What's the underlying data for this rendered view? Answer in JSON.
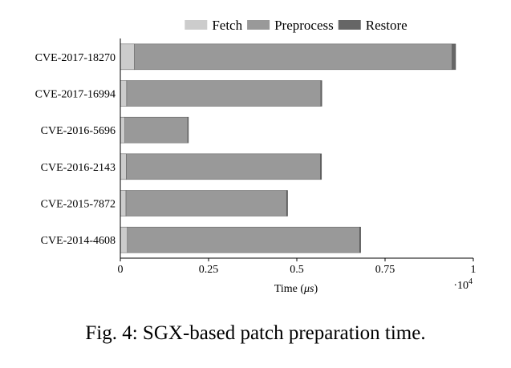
{
  "caption": "Fig. 4: SGX-based patch preparation time.",
  "chart_data": {
    "type": "bar",
    "orientation": "horizontal",
    "stacked": true,
    "categories": [
      "CVE-2017-18270",
      "CVE-2017-16994",
      "CVE-2016-5696",
      "CVE-2016-2143",
      "CVE-2015-7872",
      "CVE-2014-4608"
    ],
    "series": [
      {
        "name": "Fetch",
        "color": "#cccccc",
        "values": [
          400,
          180,
          130,
          170,
          160,
          200
        ]
      },
      {
        "name": "Preprocess",
        "color": "#999999",
        "values": [
          9000,
          5500,
          1780,
          5500,
          4550,
          6580
        ]
      },
      {
        "name": "Restore",
        "color": "#666666",
        "values": [
          100,
          30,
          20,
          30,
          30,
          30
        ]
      }
    ],
    "xlabel_main": "Time (",
    "xlabel_unit": "μs",
    "xlabel_end": ")",
    "xlim": [
      0,
      10000
    ],
    "xticks": [
      0,
      2500,
      5000,
      7500,
      10000
    ],
    "xtick_labels": [
      "0",
      "0.25",
      "0.5",
      "0.75",
      "1"
    ],
    "scale_label": "·10",
    "scale_exponent": "4",
    "legend_position": "top"
  }
}
